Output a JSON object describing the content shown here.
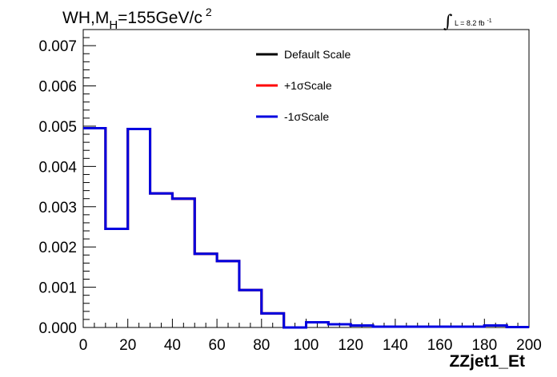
{
  "chart_data": {
    "type": "line",
    "title_main": "WH,M",
    "title_sub": "H",
    "title_rest": "=155GeV/c",
    "title_sup": "2",
    "lumi_prefix": "L = 8.2 fb",
    "lumi_sup": "-1",
    "xlabel": "ZZjet1_Et",
    "xlim": [
      0,
      200
    ],
    "ylim": [
      0,
      0.0074
    ],
    "x_ticks": [
      0,
      20,
      40,
      60,
      80,
      100,
      120,
      140,
      160,
      180,
      200
    ],
    "x_tick_labels": [
      "0",
      "20",
      "40",
      "60",
      "80",
      "100",
      "120",
      "140",
      "160",
      "180",
      "200"
    ],
    "y_ticks": [
      0,
      0.001,
      0.002,
      0.003,
      0.004,
      0.005,
      0.006,
      0.007
    ],
    "y_tick_labels": [
      "0.000",
      "0.001",
      "0.002",
      "0.003",
      "0.004",
      "0.005",
      "0.006",
      "0.007"
    ],
    "grid": false,
    "legend_position": "top-center",
    "bin_edges": [
      0,
      10,
      20,
      30,
      40,
      50,
      60,
      70,
      80,
      90,
      100,
      110,
      120,
      130,
      140,
      150,
      160,
      170,
      180,
      190,
      200
    ],
    "series": [
      {
        "name": "Default Scale",
        "color": "#000000",
        "values": [
          0.00495,
          0.00245,
          0.00493,
          0.00333,
          0.0032,
          0.00183,
          0.00165,
          0.00093,
          0.00035,
          0.0,
          0.00013,
          8e-05,
          5e-05,
          2e-05,
          2e-05,
          2e-05,
          2e-05,
          2e-05,
          5e-05,
          1e-05
        ]
      },
      {
        "name": "+1σScale",
        "color": "#ff0000",
        "values": [
          0.00495,
          0.00245,
          0.00493,
          0.00333,
          0.0032,
          0.00183,
          0.00165,
          0.00093,
          0.00035,
          0.0,
          0.00013,
          8e-05,
          5e-05,
          2e-05,
          2e-05,
          2e-05,
          2e-05,
          2e-05,
          5e-05,
          1e-05
        ]
      },
      {
        "name": "-1σScale",
        "color": "#0000e0",
        "values": [
          0.00495,
          0.00245,
          0.00493,
          0.00333,
          0.0032,
          0.00183,
          0.00165,
          0.00093,
          0.00035,
          0.0,
          0.00013,
          8e-05,
          5e-05,
          2e-05,
          2e-05,
          2e-05,
          2e-05,
          2e-05,
          5e-05,
          1e-05
        ]
      }
    ]
  }
}
